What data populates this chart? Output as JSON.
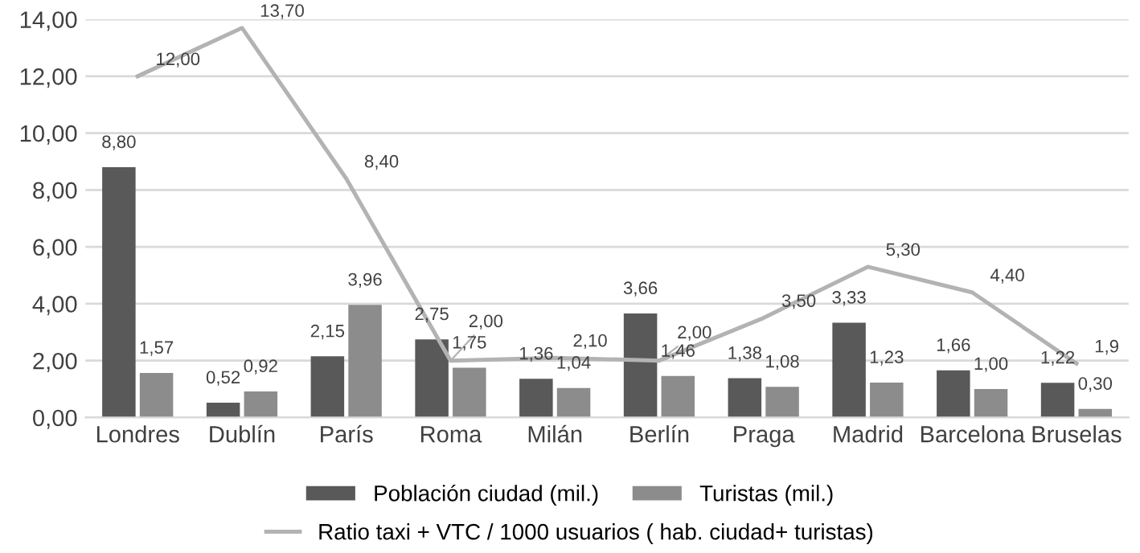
{
  "chart_data": {
    "type": "bar",
    "categories": [
      "Londres",
      "Dublín",
      "París",
      "Roma",
      "Milán",
      "Berlín",
      "Praga",
      "Madrid",
      "Barcelona",
      "Bruselas"
    ],
    "series": [
      {
        "name": "Población ciudad (mil.)",
        "color": "#595959",
        "values": [
          8.8,
          0.52,
          2.15,
          2.75,
          1.36,
          3.66,
          1.38,
          3.33,
          1.66,
          1.22
        ],
        "value_labels": [
          "8,80",
          "0,52",
          "2,15",
          "2,75",
          "1,36",
          "3,66",
          "1,38",
          "3,33",
          "1,66",
          "1,22"
        ]
      },
      {
        "name": "Turistas (mil.)",
        "color": "#8c8c8c",
        "values": [
          1.57,
          0.92,
          3.96,
          1.75,
          1.04,
          1.46,
          1.08,
          1.23,
          1.0,
          0.3
        ],
        "value_labels": [
          "1,57",
          "0,92",
          "3,96",
          "1,75",
          "1,04",
          "1,46",
          "1,08",
          "1,23",
          "1,00",
          "0,30"
        ]
      },
      {
        "name": "Ratio taxi + VTC / 1000 usuarios ( hab. ciudad+ turistas)",
        "type": "line",
        "color": "#b3b3b3",
        "values": [
          12.0,
          13.7,
          8.4,
          2.0,
          2.1,
          2.0,
          3.5,
          5.3,
          4.4,
          1.9
        ],
        "value_labels": [
          "12,00",
          "13,70",
          "8,40",
          "2,00",
          "2,10",
          "2,00",
          "3,50",
          "5,30",
          "4,40",
          "1,9"
        ]
      }
    ],
    "ylim": [
      0,
      14
    ],
    "yticks": [
      {
        "value": 0,
        "label": "0,00"
      },
      {
        "value": 2,
        "label": "2,00"
      },
      {
        "value": 4,
        "label": "4,00"
      },
      {
        "value": 6,
        "label": "6,00"
      },
      {
        "value": 8,
        "label": "8,00"
      },
      {
        "value": 10,
        "label": "10,00"
      },
      {
        "value": 12,
        "label": "12,00"
      },
      {
        "value": 14,
        "label": "14,00"
      }
    ],
    "grid": "y",
    "legend": "bottom",
    "marker": "none"
  }
}
